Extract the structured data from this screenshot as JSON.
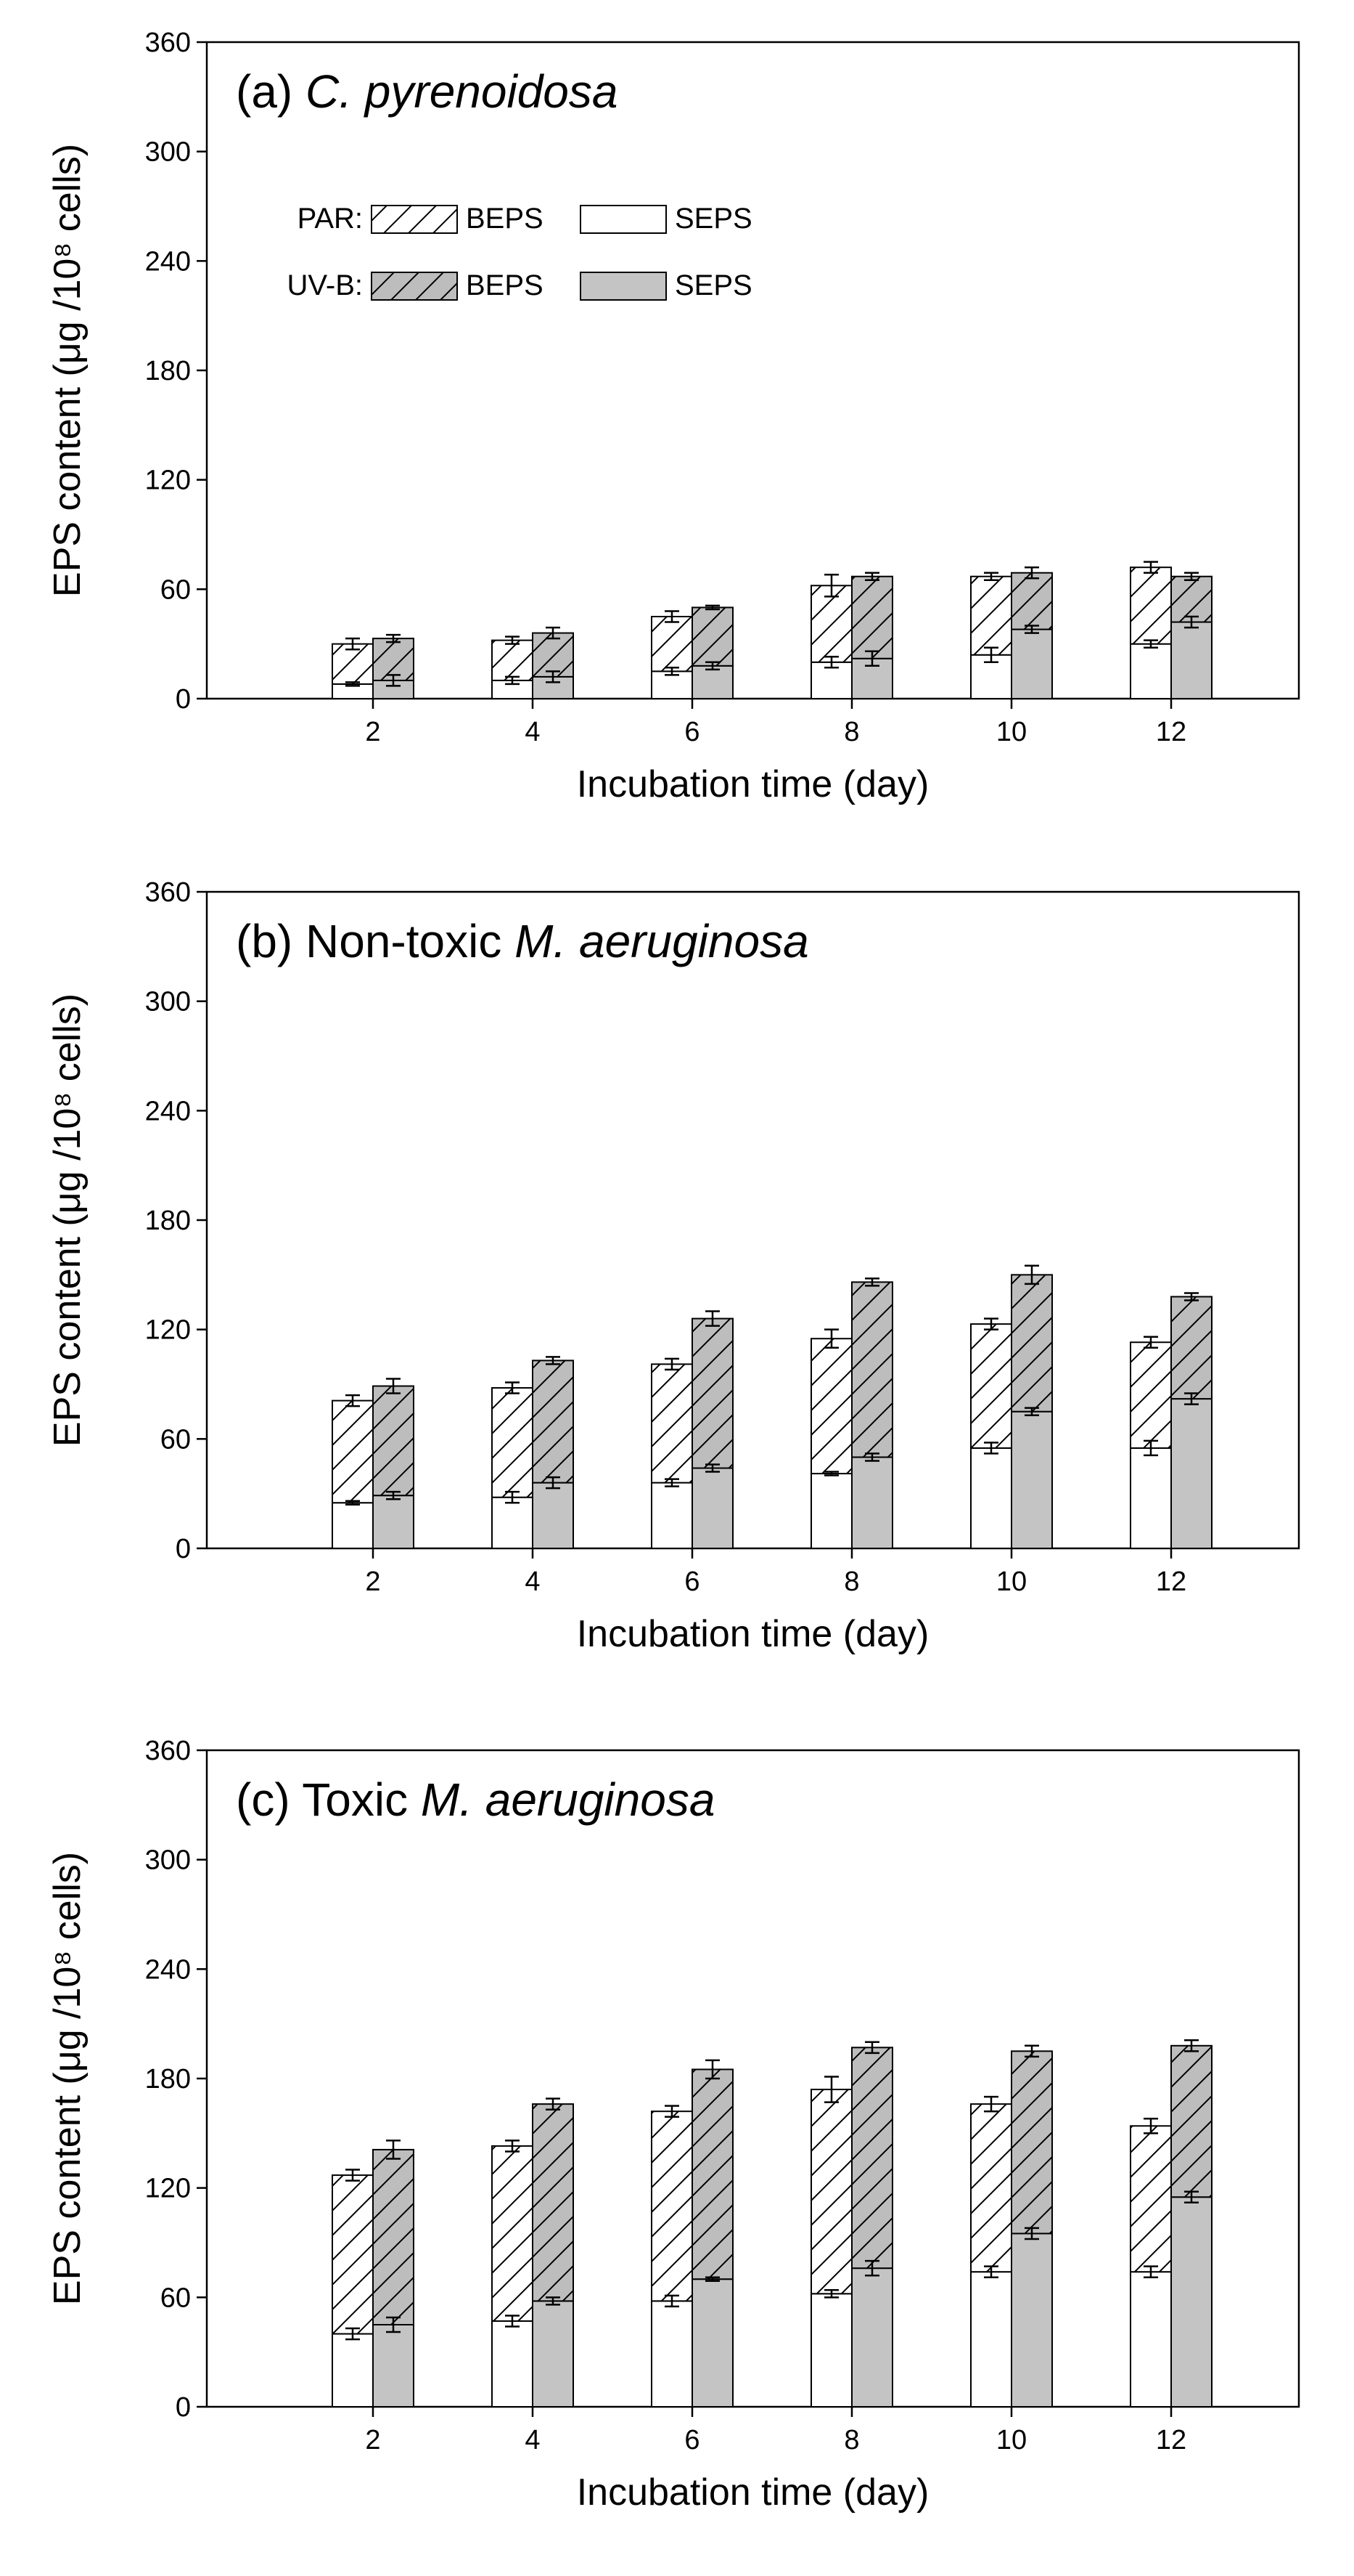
{
  "chart_data": [
    {
      "type": "bar",
      "stacked": true,
      "title": "(a) C. pyrenoidosa",
      "title_prefix": "(a) ",
      "title_italic": "C. pyrenoidosa",
      "xlabel": "Incubation time (day)",
      "ylabel": "EPS content (μg /10⁸ cells)",
      "categories": [
        "2",
        "4",
        "6",
        "8",
        "10",
        "12"
      ],
      "yticks": [
        "0",
        "60",
        "120",
        "180",
        "240",
        "300",
        "360"
      ],
      "ylim": [
        0,
        360
      ],
      "series": [
        {
          "name": "PAR SEPS",
          "values": [
            8,
            10,
            15,
            20,
            24,
            30
          ],
          "err": [
            1,
            2,
            2,
            3,
            4,
            2
          ]
        },
        {
          "name": "PAR BEPS",
          "values": [
            22,
            22,
            30,
            42,
            43,
            42
          ],
          "err": [
            3,
            2,
            3,
            6,
            2,
            3
          ]
        },
        {
          "name": "UV-B SEPS",
          "values": [
            10,
            12,
            18,
            22,
            38,
            42
          ],
          "err": [
            3,
            3,
            2,
            4,
            2,
            3
          ]
        },
        {
          "name": "UV-B BEPS",
          "values": [
            23,
            24,
            32,
            45,
            31,
            25
          ],
          "err": [
            2,
            3,
            1,
            2,
            3,
            2
          ]
        }
      ],
      "legend": {
        "position": "top-left",
        "row1_label": "PAR:",
        "row2_label": "UV-B:",
        "beps_label": "BEPS",
        "seps_label": "SEPS"
      }
    },
    {
      "type": "bar",
      "stacked": true,
      "title": "(b) Non-toxic M. aeruginosa",
      "title_prefix": "(b) Non-toxic ",
      "title_italic": "M. aeruginosa",
      "xlabel": "Incubation time (day)",
      "ylabel": "EPS content (μg /10⁸ cells)",
      "categories": [
        "2",
        "4",
        "6",
        "8",
        "10",
        "12"
      ],
      "yticks": [
        "0",
        "60",
        "120",
        "180",
        "240",
        "300",
        "360"
      ],
      "ylim": [
        0,
        360
      ],
      "series": [
        {
          "name": "PAR SEPS",
          "values": [
            25,
            28,
            36,
            41,
            55,
            55
          ],
          "err": [
            1,
            3,
            2,
            1,
            3,
            4
          ]
        },
        {
          "name": "PAR BEPS",
          "values": [
            56,
            60,
            65,
            74,
            68,
            58
          ],
          "err": [
            3,
            3,
            3,
            5,
            3,
            3
          ]
        },
        {
          "name": "UV-B SEPS",
          "values": [
            29,
            36,
            44,
            50,
            75,
            82
          ],
          "err": [
            2,
            3,
            2,
            2,
            2,
            3
          ]
        },
        {
          "name": "UV-B BEPS",
          "values": [
            60,
            67,
            82,
            96,
            75,
            56
          ],
          "err": [
            4,
            2,
            4,
            2,
            5,
            2
          ]
        }
      ]
    },
    {
      "type": "bar",
      "stacked": true,
      "title": "(c) Toxic M. aeruginosa",
      "title_prefix": "(c) Toxic ",
      "title_italic": "M. aeruginosa",
      "xlabel": "Incubation time (day)",
      "ylabel": "EPS content (μg /10⁸ cells)",
      "categories": [
        "2",
        "4",
        "6",
        "8",
        "10",
        "12"
      ],
      "yticks": [
        "0",
        "60",
        "120",
        "180",
        "240",
        "300",
        "360"
      ],
      "ylim": [
        0,
        360
      ],
      "series": [
        {
          "name": "PAR SEPS",
          "values": [
            40,
            47,
            58,
            62,
            74,
            74
          ],
          "err": [
            3,
            3,
            3,
            2,
            3,
            3
          ]
        },
        {
          "name": "PAR BEPS",
          "values": [
            87,
            96,
            104,
            112,
            92,
            80
          ],
          "err": [
            3,
            3,
            3,
            7,
            4,
            4
          ]
        },
        {
          "name": "UV-B SEPS",
          "values": [
            45,
            58,
            70,
            76,
            95,
            115
          ],
          "err": [
            4,
            2,
            1,
            4,
            3,
            3
          ]
        },
        {
          "name": "UV-B BEPS",
          "values": [
            96,
            108,
            115,
            121,
            100,
            83
          ],
          "err": [
            5,
            3,
            5,
            3,
            3,
            3
          ]
        }
      ]
    }
  ]
}
